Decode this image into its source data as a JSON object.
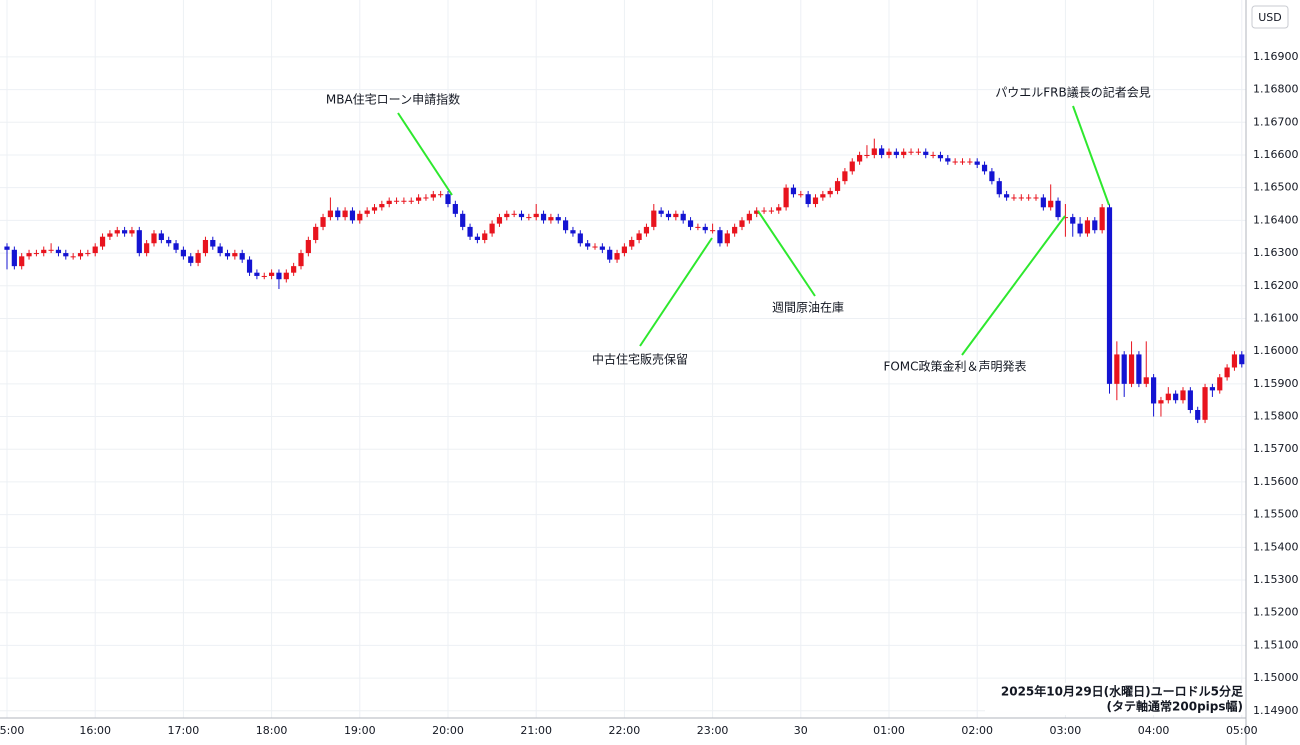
{
  "chart_data": {
    "type": "candlestick",
    "currency_label": "USD",
    "categories": [
      "5:00",
      null,
      null,
      null,
      null,
      null,
      null,
      null,
      null,
      null,
      null,
      null,
      "16:00",
      null,
      null,
      null,
      null,
      null,
      null,
      null,
      null,
      null,
      null,
      null,
      "17:00",
      null,
      null,
      null,
      null,
      null,
      null,
      null,
      null,
      null,
      null,
      null,
      "18:00",
      null,
      null,
      null,
      null,
      null,
      null,
      null,
      null,
      null,
      null,
      null,
      "19:00",
      null,
      null,
      null,
      null,
      null,
      null,
      null,
      null,
      null,
      null,
      null,
      "20:00",
      null,
      null,
      null,
      null,
      null,
      null,
      null,
      null,
      null,
      null,
      null,
      "21:00",
      null,
      null,
      null,
      null,
      null,
      null,
      null,
      null,
      null,
      null,
      null,
      "22:00",
      null,
      null,
      null,
      null,
      null,
      null,
      null,
      null,
      null,
      null,
      null,
      "23:00",
      null,
      null,
      null,
      null,
      null,
      null,
      null,
      null,
      null,
      null,
      null,
      "30",
      null,
      null,
      null,
      null,
      null,
      null,
      null,
      null,
      null,
      null,
      null,
      "01:00",
      null,
      null,
      null,
      null,
      null,
      null,
      null,
      null,
      null,
      null,
      null,
      "02:00",
      null,
      null,
      null,
      null,
      null,
      null,
      null,
      null,
      null,
      null,
      null,
      "03:00",
      null,
      null,
      null,
      null,
      null,
      null,
      null,
      null,
      null,
      null,
      null,
      "04:00",
      null,
      null,
      null,
      null,
      null,
      null,
      null,
      null,
      null,
      null,
      null,
      "05:00"
    ],
    "open": [
      1.1632,
      1.1631,
      1.1626,
      1.1629,
      1.163,
      1.163,
      1.1631,
      1.1631,
      1.163,
      1.1629,
      1.1629,
      1.163,
      1.163,
      1.1632,
      1.1635,
      1.1636,
      1.1637,
      1.1636,
      1.1637,
      1.163,
      1.1633,
      1.1636,
      1.1634,
      1.1633,
      1.1631,
      1.1629,
      1.1627,
      1.163,
      1.1634,
      1.1632,
      1.163,
      1.1629,
      1.163,
      1.1628,
      1.1624,
      1.1623,
      1.1623,
      1.1624,
      1.1622,
      1.1624,
      1.1626,
      1.163,
      1.1634,
      1.1638,
      1.1641,
      1.1643,
      1.1641,
      1.1643,
      1.164,
      1.1642,
      1.1643,
      1.1644,
      1.1645,
      1.1646,
      1.1646,
      1.1646,
      1.1646,
      1.1647,
      1.1647,
      1.1648,
      1.1648,
      1.1645,
      1.1642,
      1.1638,
      1.1635,
      1.1634,
      1.1636,
      1.1639,
      1.1641,
      1.1642,
      1.1642,
      1.1641,
      1.1641,
      1.1642,
      1.164,
      1.1641,
      1.164,
      1.1637,
      1.1636,
      1.1633,
      1.1632,
      1.1632,
      1.1631,
      1.1628,
      1.163,
      1.1632,
      1.1634,
      1.1636,
      1.1638,
      1.1643,
      1.1642,
      1.1641,
      1.1642,
      1.164,
      1.1638,
      1.1638,
      1.1637,
      1.1637,
      1.1633,
      1.1636,
      1.1638,
      1.164,
      1.1642,
      1.1643,
      1.1643,
      1.1643,
      1.1644,
      1.165,
      1.1648,
      1.1648,
      1.1645,
      1.1647,
      1.1648,
      1.1649,
      1.1652,
      1.1655,
      1.1658,
      1.166,
      1.166,
      1.1662,
      1.166,
      1.1661,
      1.166,
      1.1661,
      1.1661,
      1.1661,
      1.166,
      1.166,
      1.1659,
      1.1658,
      1.1658,
      1.1658,
      1.1658,
      1.1657,
      1.1655,
      1.1652,
      1.1648,
      1.1647,
      1.1647,
      1.1647,
      1.1647,
      1.1647,
      1.1644,
      1.1646,
      1.1641,
      1.1641,
      1.1639,
      1.1636,
      1.164,
      1.1637,
      1.1644,
      1.159,
      1.1599,
      1.159,
      1.1599,
      1.159,
      1.1592,
      1.1584,
      1.1585,
      1.1587,
      1.1585,
      1.1588,
      1.1582,
      1.1579,
      1.1589,
      1.1588,
      1.1592,
      1.1595,
      1.1599
    ],
    "high": [
      1.1633,
      1.1632,
      1.163,
      1.1631,
      1.1631,
      1.1632,
      1.1633,
      1.1632,
      1.1631,
      1.163,
      1.1631,
      1.1631,
      1.1633,
      1.1636,
      1.1637,
      1.1638,
      1.1638,
      1.1638,
      1.1638,
      1.1634,
      1.1637,
      1.1637,
      1.1635,
      1.1634,
      1.1632,
      1.163,
      1.1631,
      1.1635,
      1.1635,
      1.1633,
      1.1631,
      1.1631,
      1.1631,
      1.1629,
      1.1625,
      1.1624,
      1.1625,
      1.1625,
      1.1625,
      1.1627,
      1.1631,
      1.1635,
      1.1639,
      1.1642,
      1.1647,
      1.1644,
      1.1644,
      1.1644,
      1.1643,
      1.1644,
      1.1645,
      1.1646,
      1.1647,
      1.1647,
      1.1647,
      1.1647,
      1.1648,
      1.1648,
      1.1649,
      1.1649,
      1.1649,
      1.1646,
      1.1643,
      1.1639,
      1.1636,
      1.1637,
      1.164,
      1.1642,
      1.1643,
      1.1643,
      1.1643,
      1.1642,
      1.1645,
      1.1643,
      1.1642,
      1.1642,
      1.1641,
      1.1638,
      1.1637,
      1.1634,
      1.1633,
      1.1633,
      1.1632,
      1.1631,
      1.1633,
      1.1635,
      1.1637,
      1.1639,
      1.1645,
      1.1644,
      1.1643,
      1.1643,
      1.1643,
      1.1641,
      1.1639,
      1.1639,
      1.1639,
      1.1638,
      1.1637,
      1.1639,
      1.1641,
      1.1643,
      1.1644,
      1.1644,
      1.1644,
      1.1645,
      1.1651,
      1.1651,
      1.1649,
      1.1649,
      1.1648,
      1.1649,
      1.165,
      1.1653,
      1.1656,
      1.1659,
      1.1661,
      1.1663,
      1.1665,
      1.1663,
      1.1662,
      1.1662,
      1.1662,
      1.1662,
      1.1662,
      1.1662,
      1.1661,
      1.1661,
      1.166,
      1.1659,
      1.1659,
      1.1659,
      1.1659,
      1.1658,
      1.1656,
      1.1653,
      1.1649,
      1.1648,
      1.1648,
      1.1648,
      1.1648,
      1.1648,
      1.1651,
      1.1647,
      1.1645,
      1.1642,
      1.1641,
      1.1641,
      1.1641,
      1.1645,
      1.1645,
      1.1603,
      1.16,
      1.1603,
      1.16,
      1.1603,
      1.1593,
      1.1586,
      1.1589,
      1.1588,
      1.1589,
      1.1589,
      1.1583,
      1.159,
      1.159,
      1.1593,
      1.1596,
      1.16,
      1.16
    ],
    "low": [
      1.1625,
      1.1625,
      1.1625,
      1.1628,
      1.1629,
      1.1629,
      1.163,
      1.1629,
      1.1628,
      1.1628,
      1.1628,
      1.1629,
      1.1629,
      1.1631,
      1.1634,
      1.1635,
      1.1635,
      1.1635,
      1.1629,
      1.1629,
      1.1632,
      1.1633,
      1.1632,
      1.163,
      1.1628,
      1.1626,
      1.1626,
      1.1629,
      1.1631,
      1.1629,
      1.1628,
      1.1628,
      1.1627,
      1.1623,
      1.1622,
      1.1622,
      1.1622,
      1.1619,
      1.1621,
      1.1623,
      1.1625,
      1.1629,
      1.1633,
      1.1637,
      1.164,
      1.164,
      1.164,
      1.1639,
      1.1639,
      1.1641,
      1.1642,
      1.1643,
      1.1644,
      1.1645,
      1.1645,
      1.1645,
      1.1645,
      1.1646,
      1.1646,
      1.1647,
      1.1644,
      1.1641,
      1.1637,
      1.1634,
      1.1633,
      1.1633,
      1.1635,
      1.1638,
      1.164,
      1.1641,
      1.164,
      1.164,
      1.164,
      1.1639,
      1.1639,
      1.1639,
      1.1636,
      1.1635,
      1.1632,
      1.1631,
      1.1631,
      1.163,
      1.1627,
      1.1627,
      1.1629,
      1.1631,
      1.1633,
      1.1635,
      1.1637,
      1.1641,
      1.164,
      1.164,
      1.1639,
      1.1637,
      1.1637,
      1.1636,
      1.1636,
      1.1632,
      1.1632,
      1.1635,
      1.1637,
      1.1639,
      1.1641,
      1.1642,
      1.1642,
      1.1642,
      1.1643,
      1.1647,
      1.1647,
      1.1644,
      1.1644,
      1.1646,
      1.1647,
      1.1648,
      1.1651,
      1.1654,
      1.1657,
      1.1659,
      1.1659,
      1.1659,
      1.1659,
      1.1659,
      1.1659,
      1.166,
      1.166,
      1.1659,
      1.1659,
      1.1658,
      1.1657,
      1.1657,
      1.1657,
      1.1657,
      1.1656,
      1.1654,
      1.1651,
      1.1647,
      1.1646,
      1.1646,
      1.1646,
      1.1646,
      1.1646,
      1.1643,
      1.1643,
      1.164,
      1.1635,
      1.1635,
      1.1635,
      1.1635,
      1.1636,
      1.1636,
      1.1587,
      1.1585,
      1.1586,
      1.1589,
      1.1589,
      1.1589,
      1.158,
      1.158,
      1.1584,
      1.1584,
      1.1584,
      1.1581,
      1.1578,
      1.1578,
      1.1586,
      1.1587,
      1.1591,
      1.1594,
      1.1595
    ],
    "close": [
      1.1631,
      1.1626,
      1.1629,
      1.163,
      1.163,
      1.1631,
      1.1631,
      1.163,
      1.1629,
      1.1629,
      1.163,
      1.163,
      1.1632,
      1.1635,
      1.1636,
      1.1637,
      1.1636,
      1.1637,
      1.163,
      1.1633,
      1.1636,
      1.1634,
      1.1633,
      1.1631,
      1.1629,
      1.1627,
      1.163,
      1.1634,
      1.1632,
      1.163,
      1.1629,
      1.163,
      1.1628,
      1.1624,
      1.1623,
      1.1623,
      1.1624,
      1.1622,
      1.1624,
      1.1626,
      1.163,
      1.1634,
      1.1638,
      1.1641,
      1.1643,
      1.1641,
      1.1643,
      1.164,
      1.1642,
      1.1643,
      1.1644,
      1.1645,
      1.1646,
      1.1646,
      1.1646,
      1.1646,
      1.1647,
      1.1647,
      1.1648,
      1.1648,
      1.1645,
      1.1642,
      1.1638,
      1.1635,
      1.1634,
      1.1636,
      1.1639,
      1.1641,
      1.1642,
      1.1642,
      1.1641,
      1.1641,
      1.1642,
      1.164,
      1.1641,
      1.164,
      1.1637,
      1.1636,
      1.1633,
      1.1632,
      1.1632,
      1.1631,
      1.1628,
      1.163,
      1.1632,
      1.1634,
      1.1636,
      1.1638,
      1.1643,
      1.1642,
      1.1641,
      1.1642,
      1.164,
      1.1638,
      1.1638,
      1.1637,
      1.1637,
      1.1633,
      1.1636,
      1.1638,
      1.164,
      1.1642,
      1.1643,
      1.1643,
      1.1643,
      1.1644,
      1.165,
      1.1648,
      1.1648,
      1.1645,
      1.1647,
      1.1648,
      1.1649,
      1.1652,
      1.1655,
      1.1658,
      1.166,
      1.166,
      1.1662,
      1.166,
      1.1661,
      1.166,
      1.1661,
      1.1661,
      1.1661,
      1.166,
      1.166,
      1.1659,
      1.1658,
      1.1658,
      1.1658,
      1.1658,
      1.1657,
      1.1655,
      1.1652,
      1.1648,
      1.1647,
      1.1647,
      1.1647,
      1.1647,
      1.1647,
      1.1644,
      1.1646,
      1.1641,
      1.1641,
      1.1639,
      1.1636,
      1.164,
      1.1637,
      1.1644,
      1.159,
      1.1599,
      1.159,
      1.1599,
      1.159,
      1.1592,
      1.1584,
      1.1585,
      1.1587,
      1.1585,
      1.1588,
      1.1582,
      1.1579,
      1.1589,
      1.1588,
      1.1592,
      1.1595,
      1.1599,
      1.1596
    ],
    "colors": {
      "up": "#e8141e",
      "down": "#1414d2"
    },
    "ylim": [
      1.14878,
      1.17074
    ],
    "yticks": [
      {
        "value": 1.149,
        "label": "1.14900"
      },
      {
        "value": 1.15,
        "label": "1.15000"
      },
      {
        "value": 1.151,
        "label": "1.15100"
      },
      {
        "value": 1.152,
        "label": "1.15200"
      },
      {
        "value": 1.153,
        "label": "1.15300"
      },
      {
        "value": 1.154,
        "label": "1.15400"
      },
      {
        "value": 1.155,
        "label": "1.15500"
      },
      {
        "value": 1.156,
        "label": "1.15600"
      },
      {
        "value": 1.157,
        "label": "1.15700"
      },
      {
        "value": 1.158,
        "label": "1.15800"
      },
      {
        "value": 1.159,
        "label": "1.15900"
      },
      {
        "value": 1.16,
        "label": "1.16000"
      },
      {
        "value": 1.161,
        "label": "1.16100"
      },
      {
        "value": 1.162,
        "label": "1.16200"
      },
      {
        "value": 1.163,
        "label": "1.16300"
      },
      {
        "value": 1.164,
        "label": "1.16400"
      },
      {
        "value": 1.165,
        "label": "1.16500"
      },
      {
        "value": 1.166,
        "label": "1.16600"
      },
      {
        "value": 1.167,
        "label": "1.16700"
      },
      {
        "value": 1.168,
        "label": "1.16800"
      },
      {
        "value": 1.169,
        "label": "1.16900"
      }
    ],
    "grid": true,
    "annotations": [
      "MBA住宅ローン申請指数",
      "中古住宅販売保留",
      "週間原油在庫",
      "パウエルFRB議長の記者会見",
      "FOMC政策金利＆声明発表"
    ],
    "caption": [
      "2025年10月29日(水曜日)ユーロドル5分足",
      "(タテ軸通常200pips幅)"
    ]
  }
}
